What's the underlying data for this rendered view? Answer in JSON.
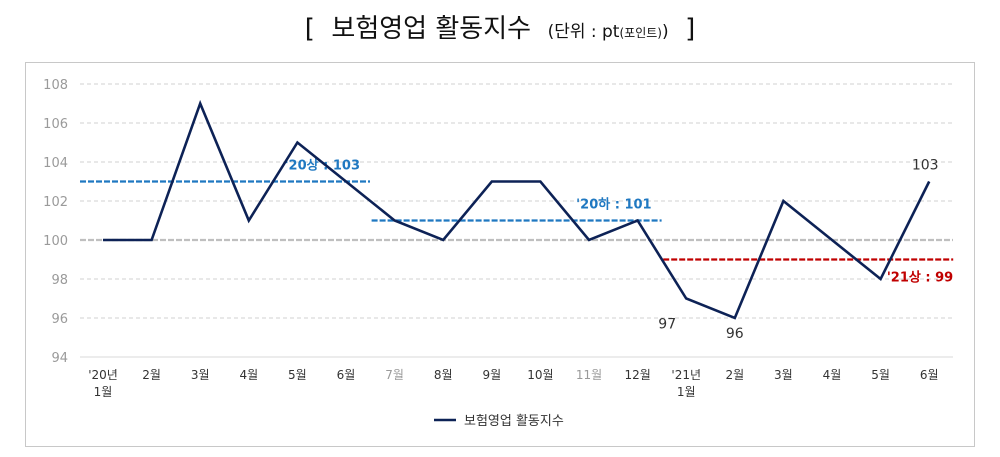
{
  "chart_data": {
    "type": "line",
    "title": "보험영업 활동지수",
    "unit_prefix": "(단위 : pt",
    "unit_sub": "(포인트)",
    "unit_suffix": ")",
    "categories": [
      "'20년\n1월",
      "2월",
      "3월",
      "4월",
      "5월",
      "6월",
      "7월",
      "8월",
      "9월",
      "10월",
      "11월",
      "12월",
      "'21년\n1월",
      "2월",
      "3월",
      "4월",
      "5월",
      "6월"
    ],
    "series": [
      {
        "name": "보험영업 활동지수",
        "color": "#0d2256",
        "values": [
          100,
          100,
          107,
          101,
          105,
          103,
          101,
          100,
          103,
          103,
          100,
          101,
          97,
          96,
          102,
          100,
          98,
          103
        ]
      }
    ],
    "ylim": [
      94,
      108
    ],
    "yticks": [
      94,
      96,
      98,
      100,
      102,
      104,
      106,
      108
    ],
    "grid": true,
    "legend": "bottom",
    "reference_lines": [
      {
        "label": "'20상 : 103",
        "value": 103,
        "from": 0,
        "to": 5,
        "color": "#1f78c1"
      },
      {
        "label": "'20하 : 101",
        "value": 101,
        "from": 6,
        "to": 11,
        "color": "#1f78c1"
      },
      {
        "label": "'21상 : 99",
        "value": 99,
        "from": 12,
        "to": 17,
        "color": "#c00000"
      }
    ],
    "data_labels": [
      {
        "index": 12,
        "text": "97"
      },
      {
        "index": 13,
        "text": "96"
      },
      {
        "index": 17,
        "text": "103"
      }
    ]
  }
}
